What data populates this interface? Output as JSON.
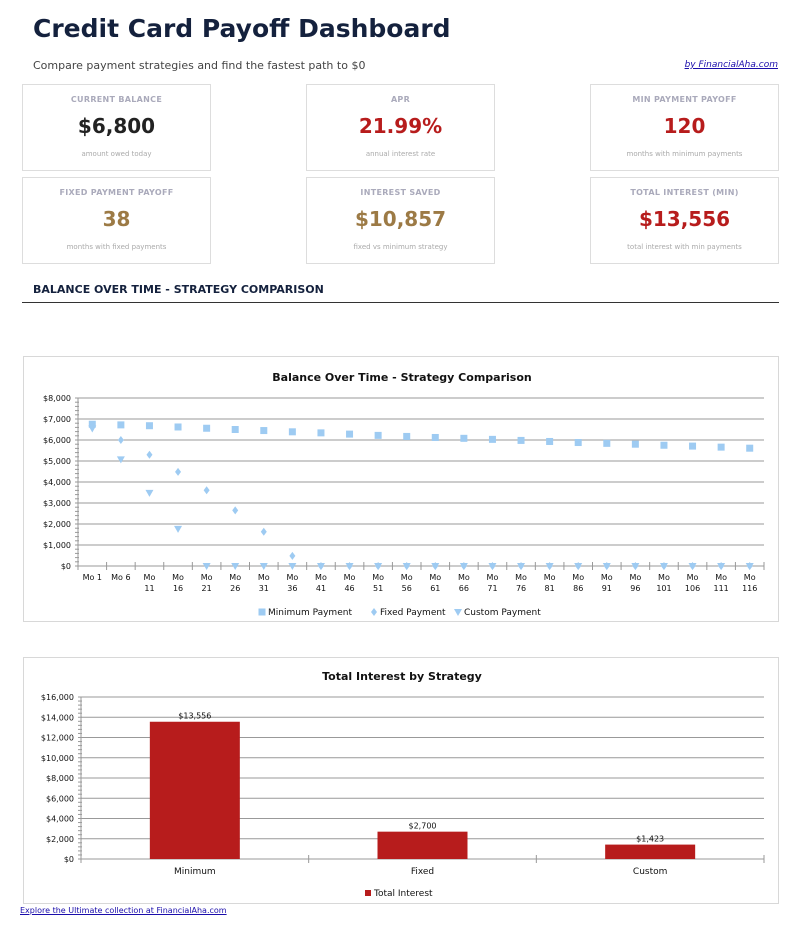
{
  "header": {
    "title": "Credit Card Payoff Dashboard",
    "subtitle": "Compare payment strategies and find the fastest path to $0",
    "brand_link": "by FinancialAha.com"
  },
  "cards": [
    {
      "label": "CURRENT BALANCE",
      "value": "$6,800",
      "note": "amount owed today",
      "color": "#222222"
    },
    {
      "label": "APR",
      "value": "21.99%",
      "note": "annual interest rate",
      "color": "#b71c1c"
    },
    {
      "label": "MIN PAYMENT PAYOFF",
      "value": "120",
      "note": "months with minimum payments",
      "color": "#b71c1c"
    },
    {
      "label": "FIXED PAYMENT PAYOFF",
      "value": "38",
      "note": "months with fixed payments",
      "color": "#9c7a45"
    },
    {
      "label": "INTEREST SAVED",
      "value": "$10,857",
      "note": "fixed vs minimum strategy",
      "color": "#9c7a45"
    },
    {
      "label": "TOTAL INTEREST (MIN)",
      "value": "$13,556",
      "note": "total interest with min payments",
      "color": "#b71c1c"
    }
  ],
  "section_title": "BALANCE OVER TIME - STRATEGY COMPARISON",
  "chart_data": [
    {
      "type": "scatter",
      "title": "Balance Over Time - Strategy Comparison",
      "ylim": [
        0,
        8000
      ],
      "yticks": [
        "$0",
        "$1,000",
        "$2,000",
        "$3,000",
        "$4,000",
        "$5,000",
        "$6,000",
        "$7,000",
        "$8,000"
      ],
      "categories": [
        "Mo 1",
        "Mo 6",
        "Mo 11",
        "Mo 16",
        "Mo 21",
        "Mo 26",
        "Mo 31",
        "Mo 36",
        "Mo 41",
        "Mo 46",
        "Mo 51",
        "Mo 56",
        "Mo 61",
        "Mo 66",
        "Mo 71",
        "Mo 76",
        "Mo 81",
        "Mo 86",
        "Mo 91",
        "Mo 96",
        "Mo 101",
        "Mo 106",
        "Mo 111",
        "Mo 116"
      ],
      "series": [
        {
          "name": "Minimum Payment",
          "marker": "square",
          "color": "#9ecbf2",
          "values": [
            6750,
            6720,
            6680,
            6620,
            6560,
            6500,
            6450,
            6390,
            6340,
            6280,
            6220,
            6170,
            6120,
            6080,
            6030,
            5980,
            5930,
            5880,
            5840,
            5800,
            5750,
            5710,
            5660,
            5610
          ]
        },
        {
          "name": "Fixed Payment",
          "marker": "diamond",
          "color": "#9ecbf2",
          "values": [
            6650,
            6000,
            5300,
            4480,
            3610,
            2650,
            1630,
            480,
            0,
            0,
            0,
            0,
            0,
            0,
            0,
            0,
            0,
            0,
            0,
            0,
            0,
            0,
            0,
            0
          ]
        },
        {
          "name": "Custom Payment",
          "marker": "triangle-down",
          "color": "#9ecbf2",
          "values": [
            6550,
            5080,
            3480,
            1770,
            0,
            0,
            0,
            0,
            0,
            0,
            0,
            0,
            0,
            0,
            0,
            0,
            0,
            0,
            0,
            0,
            0,
            0,
            0,
            0
          ]
        }
      ],
      "legend": "bottom",
      "grid": true
    },
    {
      "type": "bar",
      "title": "Total Interest by Strategy",
      "ylim": [
        0,
        16000
      ],
      "yticks": [
        "$0",
        "$2,000",
        "$4,000",
        "$6,000",
        "$8,000",
        "$10,000",
        "$12,000",
        "$14,000",
        "$16,000"
      ],
      "categories": [
        "Minimum",
        "Fixed",
        "Custom"
      ],
      "series": [
        {
          "name": "Total Interest",
          "color": "#b71c1c",
          "values": [
            13556,
            2700,
            1423
          ],
          "labels": [
            "$13,556",
            "$2,700",
            "$1,423"
          ]
        }
      ],
      "legend": "bottom",
      "grid": true
    }
  ],
  "footer_link": "Explore the Ultimate collection at FinancialAha.com"
}
